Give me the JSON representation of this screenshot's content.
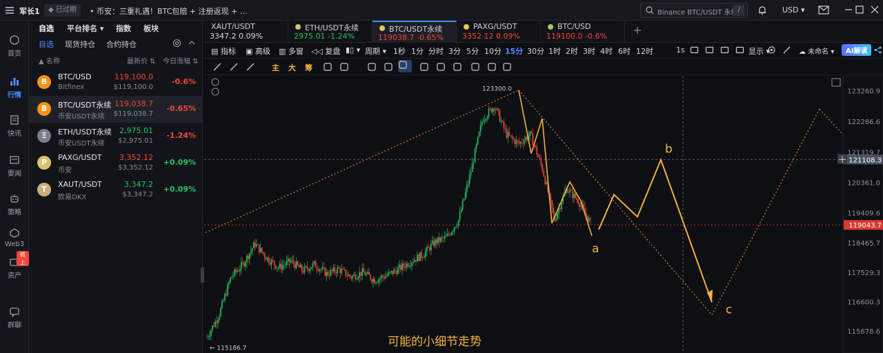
{
  "topbar": {
    "user": "军长1",
    "status": "已过期",
    "news": "• 币安：三重礼遇！BTC包赔 + 注册返现 + …",
    "search_placeholder": "Binance BTC/USDT 永续",
    "search_key": "/",
    "currency": "USD"
  },
  "nav": [
    {
      "label": "首页",
      "icon": "home-icon"
    },
    {
      "label": "行情",
      "icon": "chart-icon"
    },
    {
      "label": "快讯",
      "icon": "news-icon"
    },
    {
      "label": "要闻",
      "icon": "article-icon"
    },
    {
      "label": "策略",
      "icon": "robot-icon"
    },
    {
      "label": "Web3",
      "icon": "web3-icon"
    },
    {
      "label": "资产",
      "icon": "wallet-icon",
      "badge": "链上"
    },
    {
      "label": "群聊",
      "icon": "chat-icon"
    }
  ],
  "watch": {
    "tabs": [
      "自选",
      "平台排名",
      "指数",
      "板块"
    ],
    "subtabs": [
      "自选",
      "现货持仓",
      "合约持仓"
    ],
    "head": {
      "name": "名称",
      "price": "最新价",
      "change": "今日涨幅"
    },
    "rows": [
      {
        "name": "BTC/USD",
        "exchange": "Bitfinex",
        "price": "119,100.0",
        "sub": "$119,100.0",
        "change": "-0.6%",
        "dir": "down",
        "coin": "B",
        "color": "#f7931a"
      },
      {
        "name": "BTC/USDT永续",
        "exchange": "币安USDT永续",
        "price": "119,038.7",
        "sub": "$119,038.7",
        "change": "-0.65%",
        "dir": "down",
        "coin": "B",
        "color": "#f7931a"
      },
      {
        "name": "ETH/USDT永续",
        "exchange": "币安USDT永续",
        "price": "2,975.01",
        "sub": "$2,975.01",
        "change": "-1.24%",
        "dir": "up",
        "coin": "Ξ",
        "color": "#7a7f8c"
      },
      {
        "name": "PAXG/USDT",
        "exchange": "币安",
        "price": "3,352.12",
        "sub": "$3,352.12",
        "change": "+0.09%",
        "dir": "down",
        "coin": "P",
        "color": "#d9c46a"
      },
      {
        "name": "XAUT/USDT",
        "exchange": "欧易OKX",
        "price": "3,347.2",
        "sub": "$3,347.2",
        "change": "+0.09%",
        "dir": "up",
        "coin": "T",
        "color": "#c9b07a"
      }
    ]
  },
  "tabs": [
    {
      "name": "XAUT/USDT",
      "value": "3347.2  0.09%",
      "dir": "neutral",
      "dot": ""
    },
    {
      "name": "ETH/USDT永续",
      "value": "2975.01  -1.24%",
      "dir": "up",
      "dot": "#d6c07a"
    },
    {
      "name": "BTC/USDT永续",
      "value": "119038.7  -0.65%",
      "dir": "down",
      "dot": "#e6c36a"
    },
    {
      "name": "PAXG/USDT",
      "value": "3352.12  0.09%",
      "dir": "down",
      "dot": "#e6c36a"
    },
    {
      "name": "BTC/USD",
      "value": "119100.0  -0.6%",
      "dir": "down",
      "dot": "#9ccc65"
    }
  ],
  "toolbar": {
    "indicators": "指标",
    "advanced": "高级",
    "multi": "多窗",
    "replay": "复盘",
    "period": "周期",
    "timeframes": [
      "1秒",
      "1分",
      "分时",
      "3分",
      "5分",
      "10分",
      "15分",
      "30分",
      "1时",
      "2时",
      "3时",
      "4时",
      "6时",
      "12时"
    ],
    "active_tf": "15分",
    "interval": "1s",
    "display": "显示",
    "unnamed": "未命名",
    "ai": "AI解读"
  },
  "drawtools": [
    "主",
    "大",
    "筹"
  ],
  "chart_data": {
    "type": "candlestick",
    "symbol": "BTC/USDT永续",
    "timeframe": "15分",
    "y_axis": [
      "123260.9",
      "122286.6",
      "121319.7",
      "120361.0",
      "119409.6",
      "118465.7",
      "117529.3",
      "116600.3",
      "115678.6"
    ],
    "high_label": "123300.0",
    "low_label": "115186.7",
    "crosshair_price": "121108.3",
    "last_price": "119043.7",
    "wave_labels": [
      "a",
      "b",
      "c"
    ],
    "annotation": "可能的小细节走势",
    "close_path": [
      115500,
      116200,
      117400,
      117800,
      118450,
      118000,
      117700,
      117900,
      117600,
      117800,
      117500,
      117650,
      117400,
      117550,
      117300,
      117450,
      117650,
      117900,
      118100,
      118500,
      118650,
      119200,
      120700,
      122400,
      122800,
      121900,
      121600,
      121900,
      120800,
      119200,
      120200,
      119800,
      119100
    ],
    "projection": [
      {
        "label": "",
        "price": 118900
      },
      {
        "label": "",
        "price": 120000
      },
      {
        "label": "",
        "price": 119300
      },
      {
        "label": "b",
        "price": 121100
      },
      {
        "label": "c",
        "price": 116600
      }
    ]
  }
}
